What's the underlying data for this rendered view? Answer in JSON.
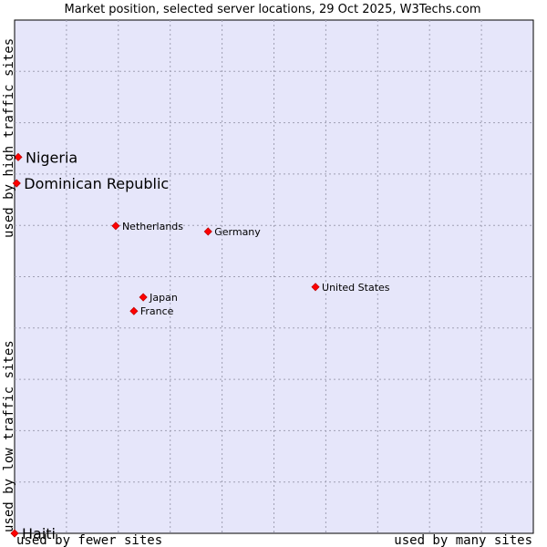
{
  "chart_data": {
    "type": "scatter",
    "title": "Market position, selected server locations, 29 Oct 2025, W3Techs.com",
    "xlabel_left": "used by fewer sites",
    "xlabel_right": "used by many sites",
    "ylabel_bottom": "used by low traffic sites",
    "ylabel_top": "used by high traffic sites",
    "xlim": [
      0,
      10
    ],
    "ylim": [
      0,
      10
    ],
    "grid": true,
    "colors": {
      "plot_bg": "#e6e6fa",
      "grid": "#a0a0b4",
      "marker": "#ff0000",
      "marker_edge": "#c00000"
    },
    "points": [
      {
        "label": "Nigeria",
        "x": 0.07,
        "y": 7.33,
        "highlight": true
      },
      {
        "label": "Dominican Republic",
        "x": 0.04,
        "y": 6.82,
        "highlight": true
      },
      {
        "label": "Netherlands",
        "x": 1.95,
        "y": 5.99,
        "highlight": false
      },
      {
        "label": "Germany",
        "x": 3.73,
        "y": 5.88,
        "highlight": false
      },
      {
        "label": "United States",
        "x": 5.8,
        "y": 4.8,
        "highlight": false
      },
      {
        "label": "Japan",
        "x": 2.48,
        "y": 4.6,
        "highlight": false
      },
      {
        "label": "France",
        "x": 2.3,
        "y": 4.33,
        "highlight": false
      },
      {
        "label": "Haiti",
        "x": 0.0,
        "y": 0.0,
        "highlight": true
      }
    ]
  }
}
